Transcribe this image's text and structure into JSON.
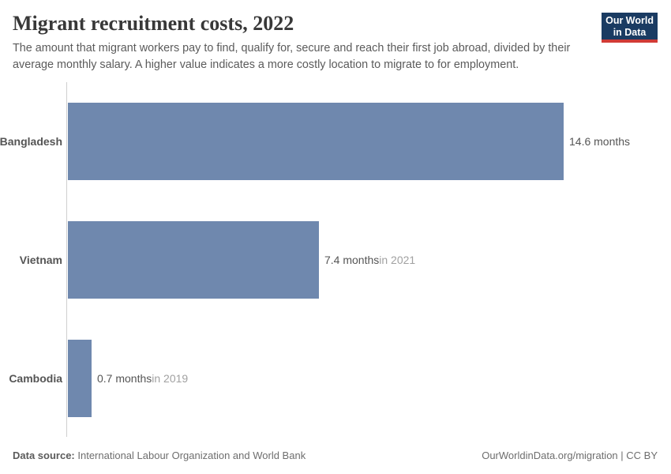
{
  "header": {
    "title": "Migrant recruitment costs, 2022",
    "subtitle_lines": [
      "The amount that migrant workers pay to find, qualify for, secure and reach their first job abroad, divided by their",
      "average monthly salary. A higher value indicates a more costly location to migrate to for employment."
    ]
  },
  "logo": {
    "line1": "Our World",
    "line2": "in Data",
    "bg_color": "#1a3b62",
    "accent_color": "#d13b36"
  },
  "chart_data": {
    "type": "bar",
    "orientation": "horizontal",
    "title": "Migrant recruitment costs, 2022",
    "unit": "months",
    "categories": [
      "Bangladesh",
      "Vietnam",
      "Cambodia"
    ],
    "values": [
      14.6,
      7.4,
      0.7
    ],
    "value_labels": [
      "14.6 months",
      "7.4 months",
      "0.7 months"
    ],
    "time_notes": [
      "",
      "in 2021",
      "in 2019"
    ],
    "xlim": [
      0,
      14.6
    ],
    "bar_color": "#6f88ae",
    "grid": false,
    "legend": false
  },
  "footer": {
    "source_label": "Data source:",
    "source_text": " International Labour Organization and World Bank",
    "credit": "OurWorldinData.org/migration | CC BY"
  }
}
